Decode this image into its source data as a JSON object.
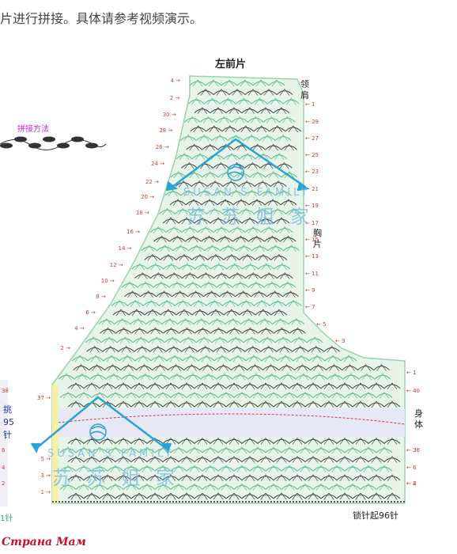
{
  "intro_text": "片进行拼接。具体请参考视频演示。",
  "diagram": {
    "title": "左前片",
    "join_method_label": "拼接方法",
    "collar_shoulder_label": [
      "领",
      "肩"
    ],
    "chest_piece_label": [
      "胸",
      "片"
    ],
    "body_label": [
      "身",
      "体"
    ],
    "left_strip_labels": [
      "挑",
      "95",
      "针"
    ],
    "left_bottom_label": "1针",
    "bottom_label": "锁针起96针",
    "watermark_en": "SUSAN'S FAMILY",
    "watermark_cn": "苏 苏 姐 家",
    "left_row_numbers": [
      "4",
      "2",
      "30",
      "28",
      "26",
      "24",
      "22",
      "20",
      "18",
      "16",
      "14",
      "12",
      "10",
      "8",
      "6",
      "4",
      "2",
      "37",
      "5",
      "3",
      "1"
    ],
    "right_row_numbers": [
      "1",
      "29",
      "27",
      "25",
      "23",
      "21",
      "19",
      "17",
      "15",
      "13",
      "11",
      "9",
      "7",
      "5",
      "3",
      "1",
      "40",
      "38",
      "6",
      "4",
      "2"
    ],
    "left_strip_row_numbers": [
      "38",
      "6",
      "4",
      "2"
    ],
    "colors": {
      "green": "#5fb98a",
      "dark": "#444444",
      "red_marker": "#d33c3c",
      "blue_arrow": "#2aa3d6",
      "shaded_band": "#e6e9f5",
      "yellow_edge": "#f6f1a6",
      "light_green_bg": "#e6f4ea"
    }
  },
  "site_watermark": "Страна Мам"
}
